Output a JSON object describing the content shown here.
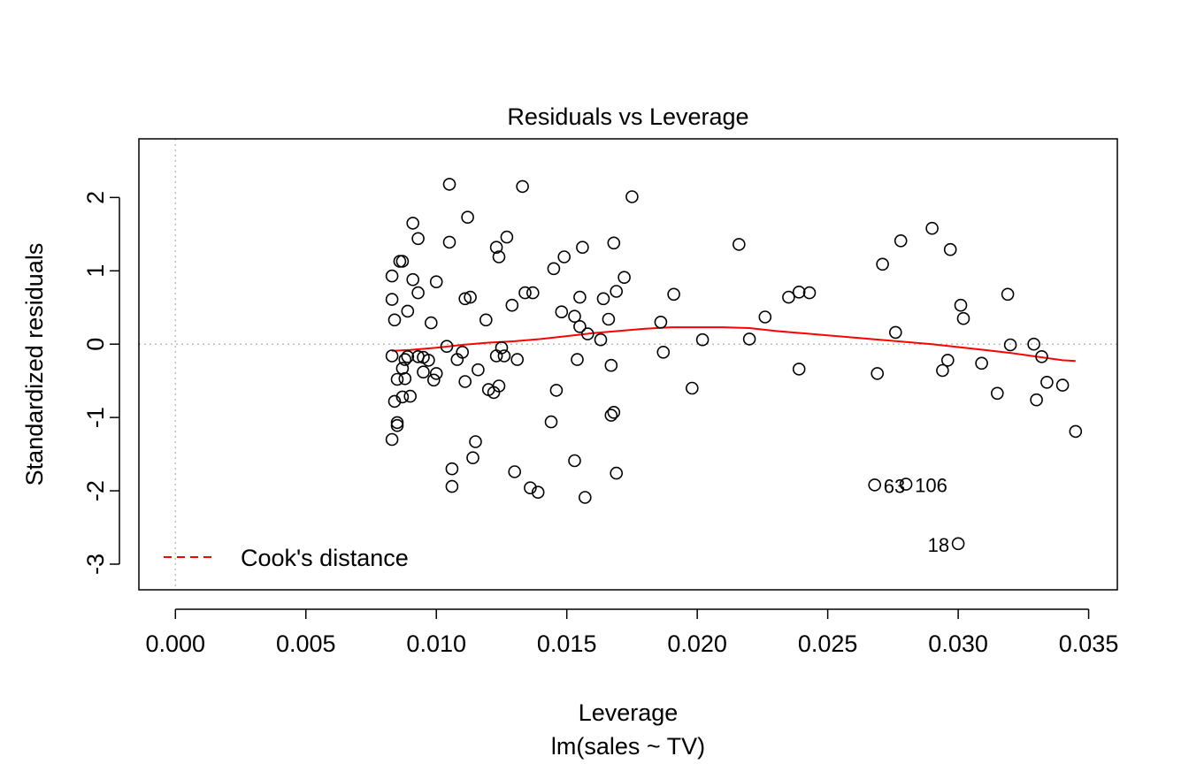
{
  "chart_data": {
    "type": "scatter",
    "title": "Residuals vs Leverage",
    "xlabel": "Leverage",
    "subtitle": "lm(sales ~ TV)",
    "ylabel": "Standardized residuals",
    "xlim": [
      -0.0014,
      0.0361
    ],
    "ylim": [
      -3.35,
      2.8
    ],
    "x_ticks": [
      0.0,
      0.005,
      0.01,
      0.015,
      0.02,
      0.025,
      0.03,
      0.035
    ],
    "x_tick_labels": [
      "0.000",
      "0.005",
      "0.010",
      "0.015",
      "0.020",
      "0.025",
      "0.030",
      "0.035"
    ],
    "y_ticks": [
      -3,
      -2,
      -1,
      0,
      1,
      2
    ],
    "y_tick_labels": [
      "-3",
      "-2",
      "-1",
      "0",
      "1",
      "2"
    ],
    "reference_lines": {
      "x": 0,
      "y": 0,
      "style": "dotted",
      "color": "#bebebe"
    },
    "legend": {
      "position": "bottom-left",
      "label": "Cook's distance",
      "color": "#ff0000",
      "line_style": "dashed"
    },
    "smooth_color": "#ff0000",
    "point_color": "#000000",
    "points": [
      [
        0.0083,
        0.93
      ],
      [
        0.0083,
        0.61
      ],
      [
        0.0084,
        0.33
      ],
      [
        0.0083,
        -0.16
      ],
      [
        0.0084,
        -0.78
      ],
      [
        0.0085,
        -0.48
      ],
      [
        0.0085,
        -1.07
      ],
      [
        0.0085,
        -1.11
      ],
      [
        0.0083,
        -1.3
      ],
      [
        0.0086,
        1.13
      ],
      [
        0.0087,
        1.13
      ],
      [
        0.0087,
        -0.33
      ],
      [
        0.0087,
        -0.72
      ],
      [
        0.0088,
        -0.47
      ],
      [
        0.0088,
        -0.21
      ],
      [
        0.0089,
        -0.17
      ],
      [
        0.0089,
        0.45
      ],
      [
        0.009,
        -0.71
      ],
      [
        0.0091,
        1.65
      ],
      [
        0.0091,
        0.88
      ],
      [
        0.0093,
        1.44
      ],
      [
        0.0093,
        0.7
      ],
      [
        0.0093,
        -0.17
      ],
      [
        0.0095,
        -0.18
      ],
      [
        0.0095,
        -0.38
      ],
      [
        0.0097,
        -0.22
      ],
      [
        0.0098,
        0.29
      ],
      [
        0.0099,
        -0.49
      ],
      [
        0.01,
        -0.4
      ],
      [
        0.01,
        0.85
      ],
      [
        0.0105,
        2.18
      ],
      [
        0.0105,
        1.39
      ],
      [
        0.0104,
        -0.03
      ],
      [
        0.0106,
        -1.7
      ],
      [
        0.0106,
        -1.94
      ],
      [
        0.0108,
        -0.21
      ],
      [
        0.011,
        -0.11
      ],
      [
        0.0111,
        -0.51
      ],
      [
        0.0111,
        0.62
      ],
      [
        0.0112,
        1.73
      ],
      [
        0.0113,
        0.64
      ],
      [
        0.0114,
        -1.55
      ],
      [
        0.0115,
        -1.33
      ],
      [
        0.0116,
        -0.35
      ],
      [
        0.0119,
        0.33
      ],
      [
        0.012,
        -0.62
      ],
      [
        0.0122,
        -0.66
      ],
      [
        0.0123,
        1.32
      ],
      [
        0.0124,
        1.19
      ],
      [
        0.0123,
        -0.16
      ],
      [
        0.0124,
        -0.57
      ],
      [
        0.0125,
        -0.05
      ],
      [
        0.0126,
        -0.16
      ],
      [
        0.0127,
        1.46
      ],
      [
        0.0129,
        0.53
      ],
      [
        0.013,
        -1.74
      ],
      [
        0.0131,
        -0.21
      ],
      [
        0.0133,
        2.15
      ],
      [
        0.0134,
        0.7
      ],
      [
        0.0136,
        -1.96
      ],
      [
        0.0137,
        0.7
      ],
      [
        0.0139,
        -2.02
      ],
      [
        0.0144,
        -1.06
      ],
      [
        0.0145,
        1.03
      ],
      [
        0.0146,
        -0.63
      ],
      [
        0.0148,
        0.44
      ],
      [
        0.0149,
        1.19
      ],
      [
        0.0153,
        0.38
      ],
      [
        0.0153,
        -1.59
      ],
      [
        0.0154,
        -0.21
      ],
      [
        0.0155,
        0.64
      ],
      [
        0.0155,
        0.24
      ],
      [
        0.0156,
        1.32
      ],
      [
        0.0157,
        -2.09
      ],
      [
        0.0158,
        0.14
      ],
      [
        0.0163,
        0.06
      ],
      [
        0.0164,
        0.62
      ],
      [
        0.0166,
        0.34
      ],
      [
        0.0167,
        -0.29
      ],
      [
        0.0167,
        -0.97
      ],
      [
        0.0168,
        1.38
      ],
      [
        0.0168,
        -0.93
      ],
      [
        0.0169,
        -1.76
      ],
      [
        0.0169,
        0.72
      ],
      [
        0.0172,
        0.91
      ],
      [
        0.0175,
        2.01
      ],
      [
        0.0186,
        0.3
      ],
      [
        0.0187,
        -0.11
      ],
      [
        0.0191,
        0.68
      ],
      [
        0.0198,
        -0.6
      ],
      [
        0.0202,
        0.06
      ],
      [
        0.0216,
        1.36
      ],
      [
        0.022,
        0.07
      ],
      [
        0.0226,
        0.37
      ],
      [
        0.0235,
        0.64
      ],
      [
        0.0239,
        -0.34
      ],
      [
        0.0239,
        0.71
      ],
      [
        0.0243,
        0.7
      ],
      [
        0.0269,
        -0.4
      ],
      [
        0.0271,
        1.09
      ],
      [
        0.0276,
        0.16
      ],
      [
        0.0278,
        1.41
      ],
      [
        0.029,
        1.58
      ],
      [
        0.0294,
        -0.36
      ],
      [
        0.0296,
        -0.22
      ],
      [
        0.0297,
        1.29
      ],
      [
        0.0301,
        0.53
      ],
      [
        0.0302,
        0.35
      ],
      [
        0.0309,
        -0.26
      ],
      [
        0.0315,
        -0.67
      ],
      [
        0.0319,
        0.68
      ],
      [
        0.032,
        -0.01
      ],
      [
        0.0329,
        0.0
      ],
      [
        0.033,
        -0.76
      ],
      [
        0.0332,
        -0.17
      ],
      [
        0.0334,
        -0.52
      ],
      [
        0.034,
        -0.56
      ],
      [
        0.0345,
        -1.19
      ]
    ],
    "labeled_points": [
      {
        "x": 0.0268,
        "y": -1.92,
        "label": "63",
        "anchor": "right"
      },
      {
        "x": 0.028,
        "y": -1.91,
        "label": "106",
        "anchor": "right"
      },
      {
        "x": 0.03,
        "y": -2.72,
        "label": "18",
        "anchor": "left"
      }
    ],
    "smooth_line": [
      [
        0.0083,
        -0.09
      ],
      [
        0.009,
        -0.08
      ],
      [
        0.01,
        -0.05
      ],
      [
        0.011,
        -0.01
      ],
      [
        0.012,
        0.02
      ],
      [
        0.013,
        0.04
      ],
      [
        0.014,
        0.07
      ],
      [
        0.015,
        0.11
      ],
      [
        0.016,
        0.15
      ],
      [
        0.017,
        0.18
      ],
      [
        0.018,
        0.21
      ],
      [
        0.019,
        0.23
      ],
      [
        0.02,
        0.23
      ],
      [
        0.021,
        0.23
      ],
      [
        0.022,
        0.22
      ],
      [
        0.023,
        0.18
      ],
      [
        0.024,
        0.15
      ],
      [
        0.025,
        0.12
      ],
      [
        0.026,
        0.09
      ],
      [
        0.027,
        0.06
      ],
      [
        0.028,
        0.03
      ],
      [
        0.029,
        0.0
      ],
      [
        0.03,
        -0.04
      ],
      [
        0.031,
        -0.08
      ],
      [
        0.032,
        -0.12
      ],
      [
        0.033,
        -0.17
      ],
      [
        0.034,
        -0.22
      ],
      [
        0.0345,
        -0.23
      ]
    ]
  }
}
